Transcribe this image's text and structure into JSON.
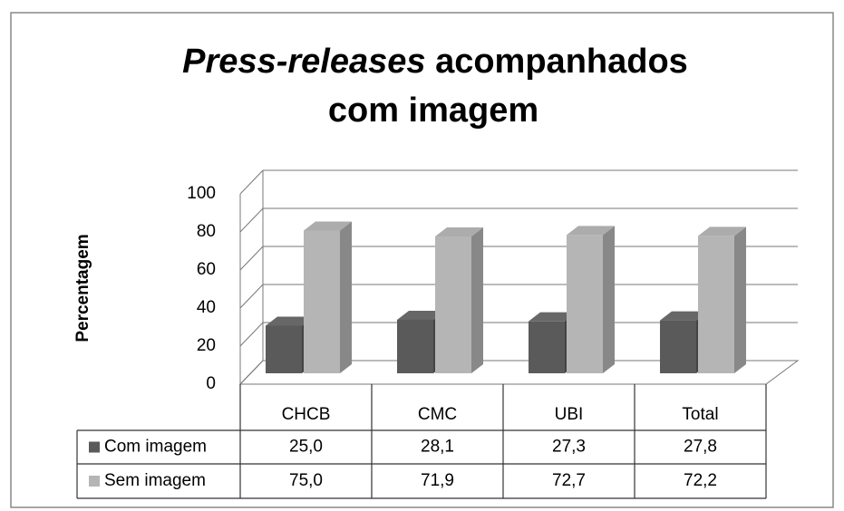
{
  "chart_data": {
    "type": "bar3d",
    "title": [
      "Press-releases",
      "acompanhados",
      "com imagem"
    ],
    "ylabel": "Percentagem",
    "categories": [
      "CHCB",
      "CMC",
      "UBI",
      "Total"
    ],
    "series": [
      {
        "name": "Com imagem",
        "color": "#5a5a5a",
        "values": [
          25.0,
          28.1,
          27.3,
          27.8
        ],
        "value_labels": [
          "25,0",
          "28,1",
          "27,3",
          "27,8"
        ]
      },
      {
        "name": "Sem imagem",
        "color": "#b5b5b5",
        "values": [
          75.0,
          71.9,
          72.7,
          72.2
        ],
        "value_labels": [
          "75,0",
          "71,9",
          "72,7",
          "72,2"
        ]
      }
    ],
    "ylim": [
      0,
      100
    ],
    "yticks": [
      0,
      20,
      40,
      60,
      80,
      100
    ],
    "grid": true
  }
}
